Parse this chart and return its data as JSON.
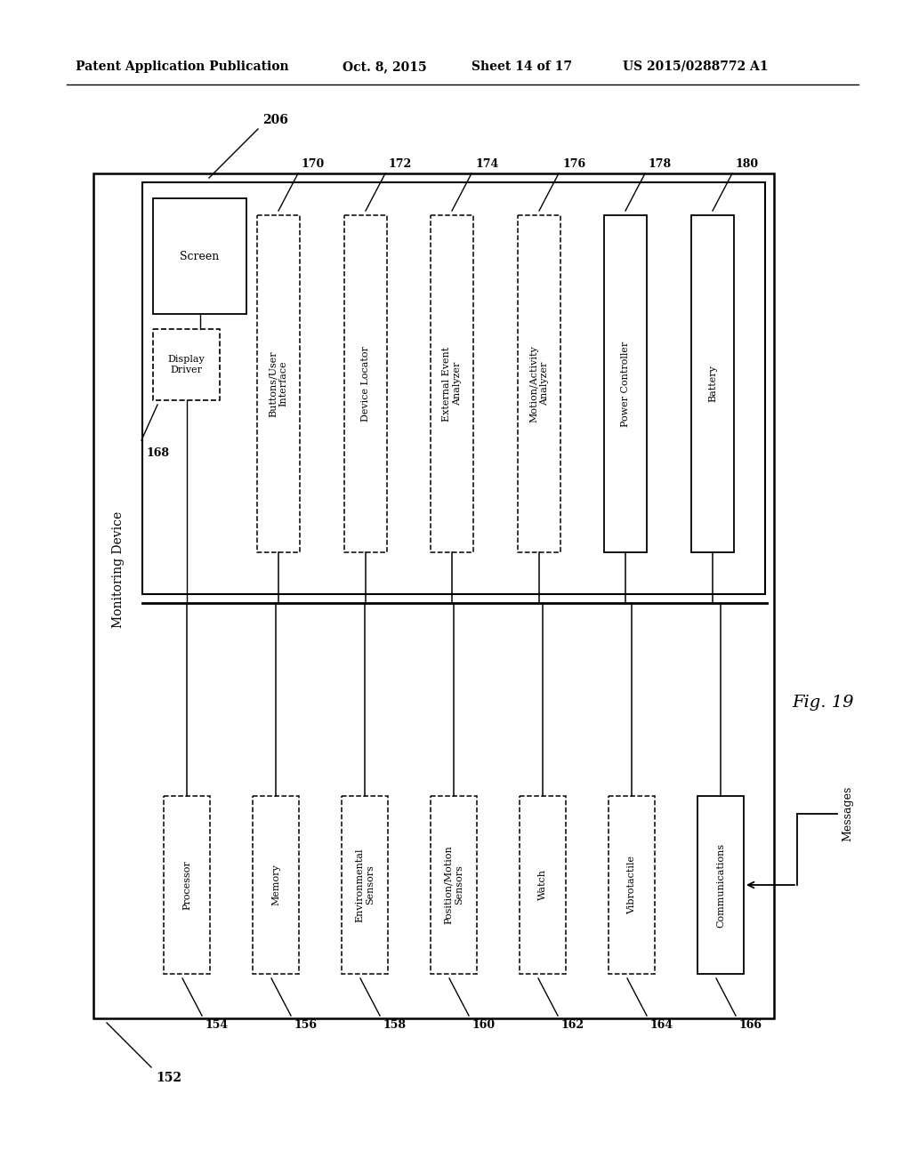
{
  "bg_color": "#ffffff",
  "header_text": "Patent Application Publication",
  "header_date": "Oct. 8, 2015",
  "header_sheet": "Sheet 14 of 17",
  "header_patent": "US 2015/0288772 A1",
  "fig_label": "Fig. 19",
  "monitoring_device_label": "Monitoring Device",
  "bottom_components": [
    {
      "label": "Processor",
      "ref": "154"
    },
    {
      "label": "Memory",
      "ref": "156"
    },
    {
      "label": "Environmental\nSensors",
      "ref": "158"
    },
    {
      "label": "Position/Motion\nSensors",
      "ref": "160"
    },
    {
      "label": "Watch",
      "ref": "162"
    },
    {
      "label": "Vibrotactile",
      "ref": "164"
    },
    {
      "label": "Communications",
      "ref": "166",
      "solid": true
    }
  ],
  "top_components": [
    {
      "label": "Buttons/User\nInterface",
      "ref": "170",
      "solid": false
    },
    {
      "label": "Device Locator",
      "ref": "172",
      "solid": false
    },
    {
      "label": "External Event\nAnalyzer",
      "ref": "174",
      "solid": false
    },
    {
      "label": "Motion/Activity\nAnalyzer",
      "ref": "176",
      "solid": false
    },
    {
      "label": "Power Controller",
      "ref": "178",
      "solid": true
    },
    {
      "label": "Battery",
      "ref": "180",
      "solid": true
    }
  ],
  "screen_label": "Screen",
  "display_driver_label": "Display\nDriver",
  "display_driver_ref": "168",
  "inner_box_ref": "206",
  "outer_box_ref": "152",
  "messages_label": "Messages"
}
